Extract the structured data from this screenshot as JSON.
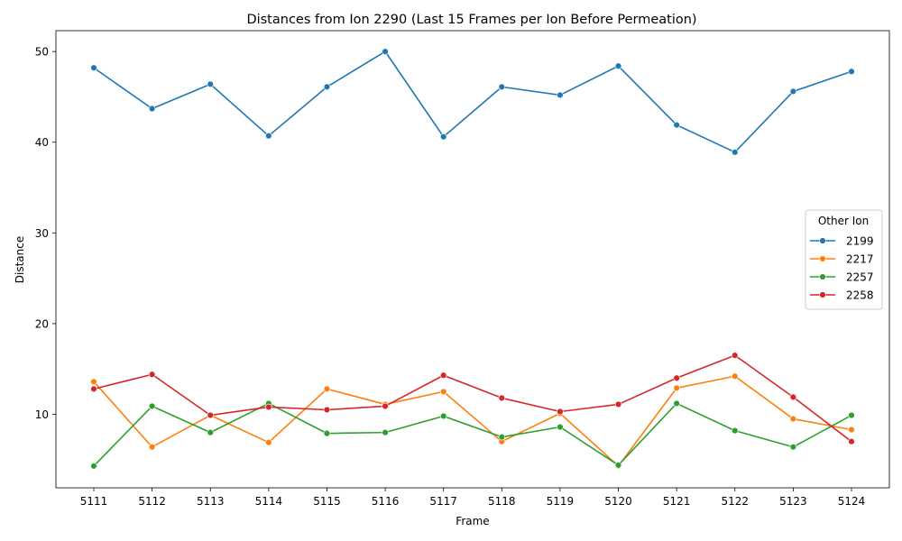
{
  "chart_data": {
    "type": "line",
    "title": "Distances from Ion 2290 (Last 15 Frames per Ion Before Permeation)",
    "xlabel": "Frame",
    "ylabel": "Distance",
    "categories": [
      "5111",
      "5112",
      "5113",
      "5114",
      "5115",
      "5116",
      "5117",
      "5118",
      "5119",
      "5120",
      "5121",
      "5122",
      "5123",
      "5124"
    ],
    "ylim": [
      1.9,
      52.3
    ],
    "yticks": [
      10,
      20,
      30,
      40,
      50
    ],
    "grid": false,
    "legend": {
      "title": "Other Ion",
      "placement": "right"
    },
    "series": [
      {
        "name": "2199",
        "color": "#1f77b4",
        "values": [
          48.2,
          43.7,
          46.4,
          40.7,
          46.1,
          50.0,
          40.6,
          46.1,
          45.2,
          48.4,
          41.9,
          38.9,
          45.6,
          47.8
        ]
      },
      {
        "name": "2217",
        "color": "#ff7f0e",
        "values": [
          13.6,
          6.4,
          9.9,
          6.9,
          12.8,
          11.1,
          12.5,
          7.0,
          10.1,
          4.3,
          12.9,
          14.2,
          9.5,
          8.3
        ]
      },
      {
        "name": "2257",
        "color": "#2ca02c",
        "values": [
          4.3,
          10.9,
          8.0,
          11.2,
          7.9,
          8.0,
          9.8,
          7.5,
          8.6,
          4.4,
          11.2,
          8.2,
          6.4,
          9.9
        ]
      },
      {
        "name": "2258",
        "color": "#d62728",
        "values": [
          12.8,
          14.4,
          9.9,
          10.8,
          10.5,
          10.9,
          14.3,
          11.8,
          10.3,
          11.1,
          14.0,
          16.5,
          11.9,
          7.0
        ]
      }
    ]
  }
}
